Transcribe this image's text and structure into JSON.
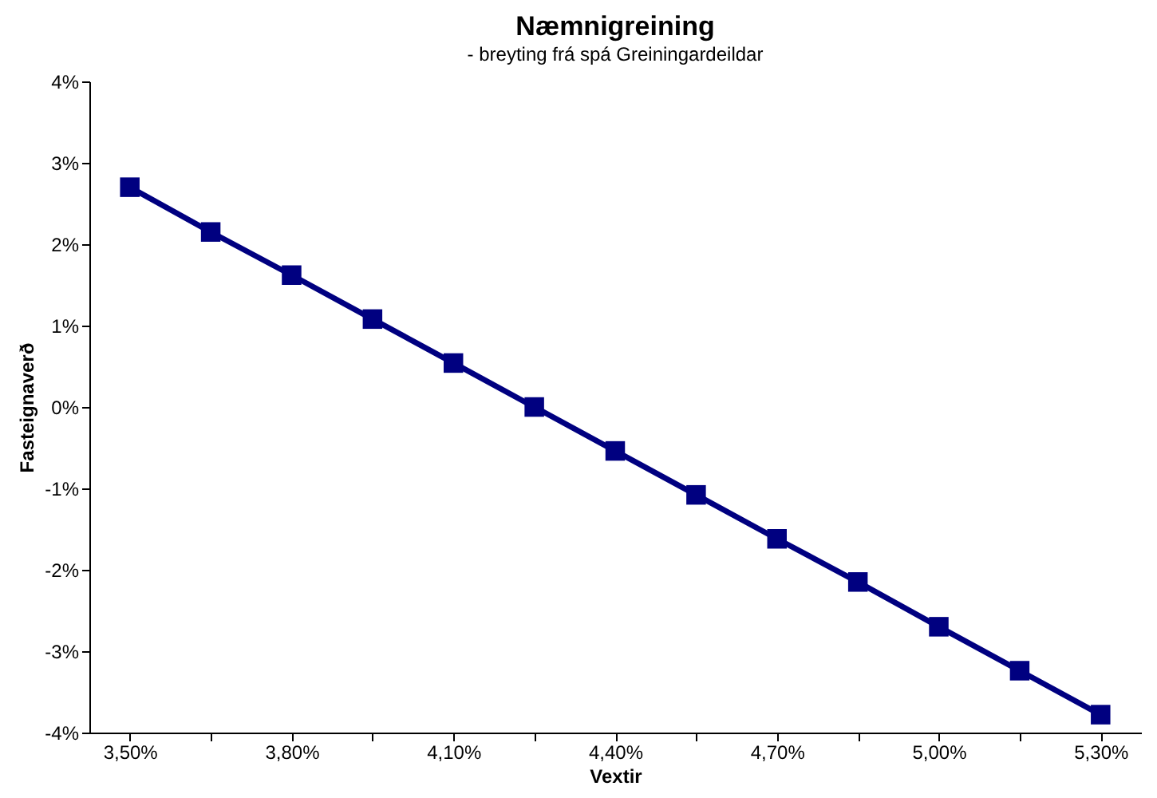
{
  "chart_data": {
    "type": "line",
    "title": "Næmnigreining",
    "subtitle": "- breyting frá spá Greiningardeildar",
    "xlabel": "Vextir",
    "ylabel": "Fasteignaverð",
    "categories": [
      "3,50%",
      null,
      "3,80%",
      null,
      "4,10%",
      null,
      "4,40%",
      null,
      "4,70%",
      null,
      "5,00%",
      null,
      "5,30%"
    ],
    "series": [
      {
        "color": "#000080",
        "values": [
          2.7,
          2.15,
          1.62,
          1.08,
          0.54,
          0,
          -0.54,
          -1.08,
          -1.62,
          -2.15,
          -2.7,
          -3.24,
          -3.78
        ]
      }
    ],
    "ylim": [
      -4,
      4
    ],
    "yticks": [
      {
        "value": -4,
        "label": "-4%"
      },
      {
        "value": -3,
        "label": "-3%"
      },
      {
        "value": -2,
        "label": "-2%"
      },
      {
        "value": -1,
        "label": "-1%"
      },
      {
        "value": 0,
        "label": "0%"
      },
      {
        "value": 1,
        "label": "1%"
      },
      {
        "value": 2,
        "label": "2%"
      },
      {
        "value": 3,
        "label": "3%"
      },
      {
        "value": 4,
        "label": "4%"
      }
    ],
    "grid": false,
    "marker": "square",
    "line_style": "solid"
  }
}
